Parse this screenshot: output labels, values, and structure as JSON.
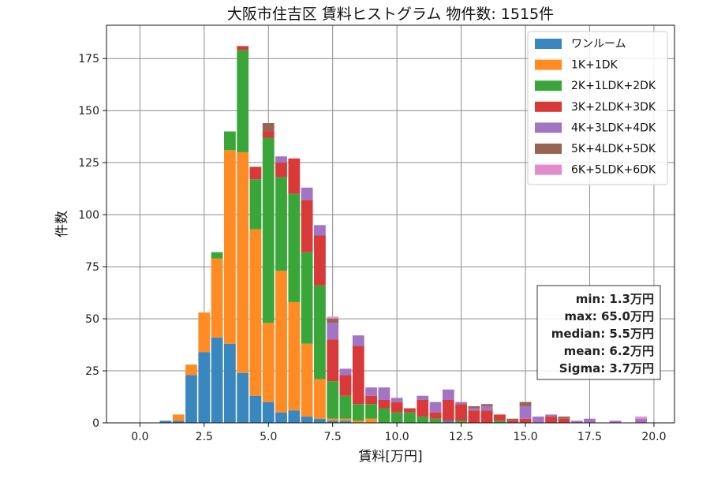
{
  "chart_data": {
    "type": "bar",
    "stacked": true,
    "title": "大阪市住吉区 賃料ヒストグラム 物件数: 1515件",
    "xlabel": "賃料[万円]",
    "ylabel": "件数",
    "xlim": [
      -1.3,
      20.8
    ],
    "ylim": [
      0,
      191
    ],
    "xticks": [
      0.0,
      2.5,
      5.0,
      7.5,
      10.0,
      12.5,
      15.0,
      17.5,
      20.0
    ],
    "xtick_labels": [
      "0.0",
      "2.5",
      "5.0",
      "7.5",
      "10.0",
      "12.5",
      "15.0",
      "17.5",
      "20.0"
    ],
    "yticks": [
      0,
      25,
      50,
      75,
      100,
      125,
      150,
      175
    ],
    "ytick_labels": [
      "0",
      "25",
      "50",
      "75",
      "100",
      "125",
      "150",
      "175"
    ],
    "grid": true,
    "legend_position": "top-right",
    "bin_width": 0.5,
    "bins": [
      1.0,
      1.5,
      2.0,
      2.5,
      3.0,
      3.5,
      4.0,
      4.5,
      5.0,
      5.5,
      6.0,
      6.5,
      7.0,
      7.5,
      8.0,
      8.5,
      9.0,
      9.5,
      10.0,
      10.5,
      11.0,
      11.5,
      12.0,
      12.5,
      13.0,
      13.5,
      14.0,
      14.5,
      15.0,
      15.5,
      16.0,
      16.5,
      17.0,
      17.5,
      18.0,
      18.5,
      19.0,
      19.5
    ],
    "series": [
      {
        "name": "ワンルーム",
        "color": "#3a87c0",
        "values": [
          1,
          1,
          23,
          34,
          41,
          38,
          24,
          13,
          10,
          5,
          6,
          3,
          2,
          1,
          1,
          0,
          0,
          0,
          0,
          0,
          0,
          0,
          1,
          0,
          0,
          0,
          0,
          0,
          0,
          0,
          0,
          0,
          0,
          0,
          0,
          0,
          0,
          0
        ]
      },
      {
        "name": "1K+1DK",
        "color": "#ff8b24",
        "values": [
          0,
          3,
          5,
          19,
          38,
          93,
          106,
          80,
          38,
          68,
          52,
          35,
          19,
          1,
          1,
          1,
          2,
          0,
          0,
          0,
          0,
          0,
          0,
          0,
          0,
          0,
          0,
          0,
          0,
          0,
          0,
          0,
          0,
          0,
          0,
          0,
          0,
          0
        ]
      },
      {
        "name": "2K+1LDK+2DK",
        "color": "#3aa63a",
        "values": [
          0,
          0,
          0,
          0,
          3,
          9,
          49,
          24,
          89,
          45,
          52,
          44,
          45,
          18,
          11,
          8,
          7,
          7,
          5,
          5,
          3,
          2,
          0,
          1,
          0,
          0,
          1,
          0,
          0,
          0,
          0,
          0,
          0,
          0,
          0,
          0,
          0,
          0
        ]
      },
      {
        "name": "3K+2LDK+3DK",
        "color": "#d83a3a",
        "values": [
          0,
          0,
          0,
          0,
          0,
          0,
          2,
          6,
          3,
          7,
          17,
          25,
          24,
          20,
          10,
          28,
          4,
          4,
          5,
          2,
          8,
          3,
          10,
          8,
          6,
          6,
          3,
          1,
          2,
          0,
          3,
          2,
          0,
          0,
          0,
          0,
          0,
          0
        ]
      },
      {
        "name": "4K+3LDK+4DK",
        "color": "#a275c4",
        "values": [
          0,
          0,
          0,
          0,
          0,
          0,
          0,
          0,
          0,
          3,
          0,
          6,
          5,
          8,
          3,
          5,
          4,
          6,
          2,
          0,
          2,
          5,
          5,
          1,
          1,
          2,
          0,
          0,
          6,
          3,
          1,
          0,
          1,
          2,
          0,
          1,
          0,
          2
        ]
      },
      {
        "name": "5K+4LDK+5DK",
        "color": "#966450",
        "values": [
          0,
          0,
          0,
          0,
          0,
          0,
          0,
          0,
          4,
          0,
          0,
          0,
          0,
          2,
          0,
          0,
          0,
          0,
          0,
          0,
          0,
          0,
          0,
          0,
          1,
          1,
          0,
          1,
          2,
          0,
          0,
          1,
          0,
          0,
          0,
          0,
          0,
          0
        ]
      },
      {
        "name": "6K+5LDK+6DK",
        "color": "#e68ace",
        "values": [
          0,
          0,
          0,
          0,
          0,
          0,
          0,
          0,
          0,
          0,
          0,
          0,
          0,
          1,
          0,
          0,
          0,
          0,
          0,
          0,
          0,
          0,
          0,
          0,
          0,
          0,
          0,
          0,
          0,
          0,
          0,
          0,
          0,
          0,
          0,
          0,
          0,
          1
        ]
      }
    ],
    "annotations": [
      "min: 1.3万円",
      "max: 65.0万円",
      "median: 5.5万円",
      "mean: 6.2万円",
      "Sigma: 3.7万円"
    ]
  }
}
